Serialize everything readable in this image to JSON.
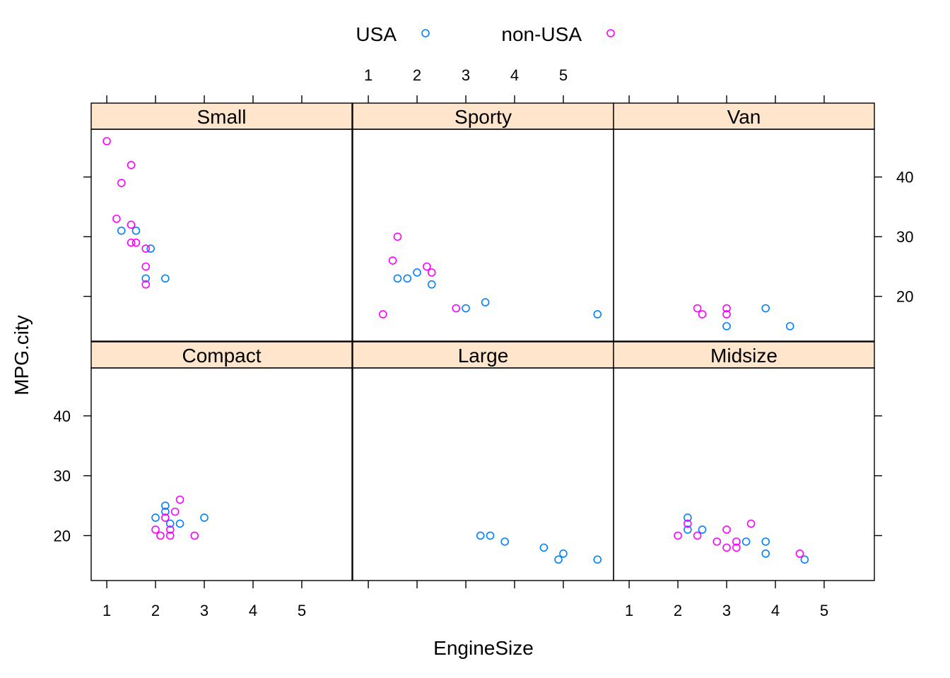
{
  "chart_data": {
    "type": "scatter",
    "layout": "lattice",
    "xlabel": "EngineSize",
    "ylabel": "MPG.city",
    "x_ticks": [
      1,
      2,
      3,
      4,
      5
    ],
    "y_ticks": [
      20,
      30,
      40
    ],
    "xlim": [
      0.68,
      6.03
    ],
    "ylim": [
      12.5,
      48
    ],
    "legend_position": "top",
    "series": [
      {
        "name": "USA",
        "color": "#0080ff",
        "marker": "open-circle"
      },
      {
        "name": "non-USA",
        "color": "#ff00ff",
        "marker": "open-circle"
      }
    ],
    "panels": [
      {
        "title": "Small",
        "points": [
          {
            "series": "USA",
            "x": 1.3,
            "y": 31
          },
          {
            "series": "USA",
            "x": 1.6,
            "y": 31
          },
          {
            "series": "USA",
            "x": 1.9,
            "y": 28
          },
          {
            "series": "USA",
            "x": 1.8,
            "y": 23
          },
          {
            "series": "USA",
            "x": 2.2,
            "y": 23
          },
          {
            "series": "non-USA",
            "x": 1.0,
            "y": 46
          },
          {
            "series": "non-USA",
            "x": 1.5,
            "y": 42
          },
          {
            "series": "non-USA",
            "x": 1.3,
            "y": 39
          },
          {
            "series": "non-USA",
            "x": 1.2,
            "y": 33
          },
          {
            "series": "non-USA",
            "x": 1.5,
            "y": 32
          },
          {
            "series": "non-USA",
            "x": 1.5,
            "y": 29
          },
          {
            "series": "non-USA",
            "x": 1.6,
            "y": 29
          },
          {
            "series": "non-USA",
            "x": 1.8,
            "y": 28
          },
          {
            "series": "non-USA",
            "x": 1.8,
            "y": 25
          },
          {
            "series": "non-USA",
            "x": 1.8,
            "y": 22
          }
        ]
      },
      {
        "title": "Sporty",
        "points": [
          {
            "series": "USA",
            "x": 1.6,
            "y": 23
          },
          {
            "series": "USA",
            "x": 1.8,
            "y": 23
          },
          {
            "series": "USA",
            "x": 2.0,
            "y": 24
          },
          {
            "series": "USA",
            "x": 2.3,
            "y": 22
          },
          {
            "series": "USA",
            "x": 3.0,
            "y": 18
          },
          {
            "series": "USA",
            "x": 3.4,
            "y": 19
          },
          {
            "series": "USA",
            "x": 5.7,
            "y": 17
          },
          {
            "series": "non-USA",
            "x": 1.6,
            "y": 30
          },
          {
            "series": "non-USA",
            "x": 1.5,
            "y": 26
          },
          {
            "series": "non-USA",
            "x": 2.2,
            "y": 25
          },
          {
            "series": "non-USA",
            "x": 2.3,
            "y": 24
          },
          {
            "series": "non-USA",
            "x": 2.8,
            "y": 18
          },
          {
            "series": "non-USA",
            "x": 1.3,
            "y": 17
          }
        ]
      },
      {
        "title": "Van",
        "points": [
          {
            "series": "USA",
            "x": 3.0,
            "y": 15
          },
          {
            "series": "USA",
            "x": 3.8,
            "y": 18
          },
          {
            "series": "USA",
            "x": 4.3,
            "y": 15
          },
          {
            "series": "non-USA",
            "x": 2.4,
            "y": 18
          },
          {
            "series": "non-USA",
            "x": 2.5,
            "y": 17
          },
          {
            "series": "non-USA",
            "x": 3.0,
            "y": 18
          },
          {
            "series": "non-USA",
            "x": 3.0,
            "y": 17
          }
        ]
      },
      {
        "title": "Compact",
        "points": [
          {
            "series": "USA",
            "x": 2.0,
            "y": 23
          },
          {
            "series": "USA",
            "x": 2.2,
            "y": 25
          },
          {
            "series": "USA",
            "x": 2.2,
            "y": 24
          },
          {
            "series": "USA",
            "x": 2.3,
            "y": 22
          },
          {
            "series": "USA",
            "x": 2.5,
            "y": 22
          },
          {
            "series": "USA",
            "x": 3.0,
            "y": 23
          },
          {
            "series": "non-USA",
            "x": 2.5,
            "y": 26
          },
          {
            "series": "non-USA",
            "x": 2.4,
            "y": 24
          },
          {
            "series": "non-USA",
            "x": 2.2,
            "y": 23
          },
          {
            "series": "non-USA",
            "x": 2.0,
            "y": 21
          },
          {
            "series": "non-USA",
            "x": 2.3,
            "y": 21
          },
          {
            "series": "non-USA",
            "x": 2.1,
            "y": 20
          },
          {
            "series": "non-USA",
            "x": 2.3,
            "y": 20
          },
          {
            "series": "non-USA",
            "x": 2.8,
            "y": 20
          }
        ]
      },
      {
        "title": "Large",
        "points": [
          {
            "series": "USA",
            "x": 3.3,
            "y": 20
          },
          {
            "series": "USA",
            "x": 3.5,
            "y": 20
          },
          {
            "series": "USA",
            "x": 3.8,
            "y": 19
          },
          {
            "series": "USA",
            "x": 4.6,
            "y": 18
          },
          {
            "series": "USA",
            "x": 5.0,
            "y": 17
          },
          {
            "series": "USA",
            "x": 4.9,
            "y": 16
          },
          {
            "series": "USA",
            "x": 5.7,
            "y": 16
          }
        ]
      },
      {
        "title": "Midsize",
        "points": [
          {
            "series": "USA",
            "x": 2.2,
            "y": 23
          },
          {
            "series": "USA",
            "x": 2.2,
            "y": 21
          },
          {
            "series": "USA",
            "x": 2.5,
            "y": 21
          },
          {
            "series": "USA",
            "x": 3.4,
            "y": 19
          },
          {
            "series": "USA",
            "x": 3.8,
            "y": 19
          },
          {
            "series": "USA",
            "x": 3.8,
            "y": 17
          },
          {
            "series": "USA",
            "x": 4.6,
            "y": 16
          },
          {
            "series": "non-USA",
            "x": 2.2,
            "y": 22
          },
          {
            "series": "non-USA",
            "x": 2.0,
            "y": 20
          },
          {
            "series": "non-USA",
            "x": 2.4,
            "y": 20
          },
          {
            "series": "non-USA",
            "x": 2.8,
            "y": 19
          },
          {
            "series": "non-USA",
            "x": 3.0,
            "y": 21
          },
          {
            "series": "non-USA",
            "x": 3.0,
            "y": 18
          },
          {
            "series": "non-USA",
            "x": 3.2,
            "y": 19
          },
          {
            "series": "non-USA",
            "x": 3.2,
            "y": 18
          },
          {
            "series": "non-USA",
            "x": 3.5,
            "y": 22
          },
          {
            "series": "non-USA",
            "x": 4.5,
            "y": 17
          }
        ]
      }
    ]
  },
  "colors": {
    "strip_fill": "#ffe5cc",
    "frame": "#000000",
    "background": "#ffffff"
  }
}
